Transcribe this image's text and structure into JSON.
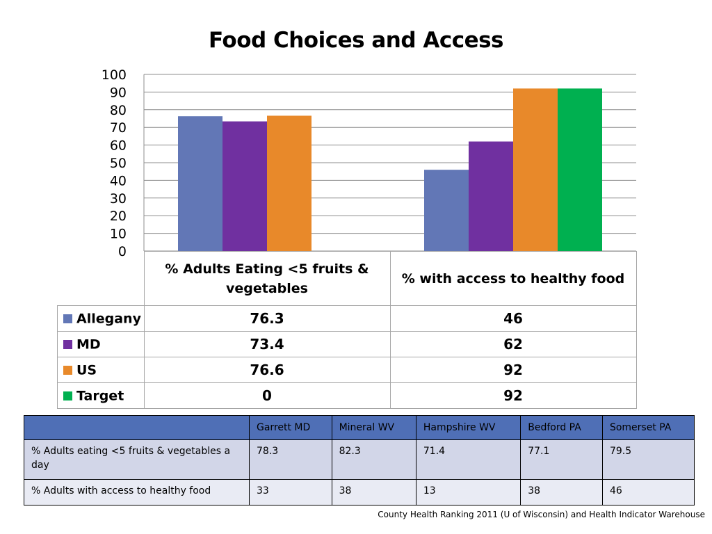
{
  "title": "Food Choices and Access",
  "chart_data": {
    "type": "bar",
    "title": "Food Choices and Access",
    "categories": [
      "% Adults Eating <5 fruits & vegetables",
      "%  with access to healthy food"
    ],
    "series": [
      {
        "name": "Allegany",
        "color": "#6277b6",
        "values": [
          76.3,
          46
        ]
      },
      {
        "name": "MD",
        "color": "#7030a0",
        "values": [
          73.4,
          62
        ]
      },
      {
        "name": "US",
        "color": "#e8892a",
        "values": [
          76.6,
          92
        ]
      },
      {
        "name": "Target",
        "color": "#00b050",
        "values": [
          0,
          92
        ]
      }
    ],
    "ylim": [
      0,
      100
    ],
    "yticks": [
      0,
      10,
      20,
      30,
      40,
      50,
      60,
      70,
      80,
      90,
      100
    ],
    "grid": true,
    "legend": "data-table-below"
  },
  "data_table": {
    "headers": [
      "% Adults Eating <5 fruits & vegetables",
      "%  with access to healthy food"
    ],
    "rows": [
      {
        "label": "Allegany",
        "values": [
          "76.3",
          "46"
        ]
      },
      {
        "label": "MD",
        "values": [
          "73.4",
          "62"
        ]
      },
      {
        "label": "US",
        "values": [
          "76.6",
          "92"
        ]
      },
      {
        "label": "Target",
        "values": [
          "0",
          "92"
        ]
      }
    ]
  },
  "county_table": {
    "headers": [
      "",
      "Garrett MD",
      "Mineral WV",
      "Hampshire WV",
      "Bedford PA",
      "Somerset PA"
    ],
    "rows": [
      {
        "label": "% Adults eating <5 fruits & vegetables a day",
        "values": [
          "78.3",
          "82.3",
          "71.4",
          "77.1",
          "79.5"
        ]
      },
      {
        "label": "% Adults with access to healthy food",
        "values": [
          "33",
          "38",
          "13",
          "38",
          "46"
        ]
      }
    ]
  },
  "source": "County Health Ranking 2011 (U of Wisconsin) and Health Indicator Warehouse"
}
